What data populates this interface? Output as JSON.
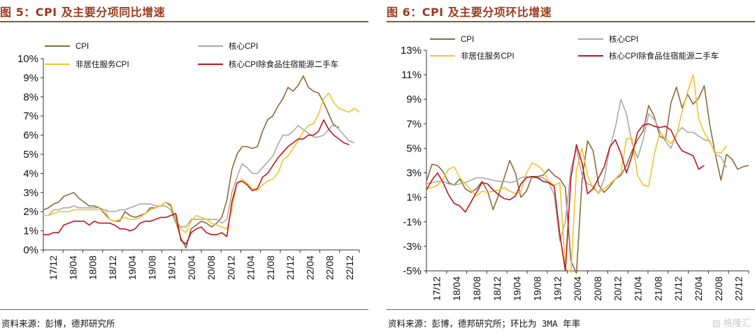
{
  "chart_data": [
    {
      "type": "line",
      "title": "图 5：CPI 及主要分项同比增速",
      "source": "资料来源：彭博，德邦研究所",
      "ylim": [
        0,
        10
      ],
      "yticks": [
        0,
        1,
        2,
        3,
        4,
        5,
        6,
        7,
        8,
        9,
        10
      ],
      "ytick_labels": [
        "0%",
        "1%",
        "2%",
        "3%",
        "4%",
        "5%",
        "6%",
        "7%",
        "8%",
        "9%",
        "10%"
      ],
      "xtick_labels": [
        "17/12",
        "18/04",
        "18/08",
        "18/12",
        "19/04",
        "19/08",
        "19/12",
        "20/04",
        "20/08",
        "20/12",
        "21/04",
        "21/08",
        "21/12",
        "22/04",
        "22/08",
        "22/12"
      ],
      "legend_placement": "top",
      "grid": false,
      "series": [
        {
          "name": "CPI",
          "color": "#8c6a3c",
          "values": [
            2.1,
            2.2,
            2.4,
            2.5,
            2.8,
            2.9,
            3.0,
            2.7,
            2.5,
            2.3,
            2.3,
            2.2,
            1.9,
            1.6,
            1.5,
            1.5,
            2.0,
            1.8,
            1.7,
            1.8,
            1.9,
            2.2,
            2.2,
            2.3,
            2.5,
            2.3,
            1.5,
            0.6,
            0.1,
            1.1,
            1.3,
            1.5,
            1.4,
            1.2,
            1.4,
            1.7,
            2.6,
            4.2,
            5.0,
            5.4,
            5.4,
            5.3,
            5.4,
            6.2,
            6.8,
            7.0,
            7.5,
            7.9,
            8.5,
            8.3,
            8.6,
            9.1,
            8.5,
            8.3,
            8.2,
            7.7,
            7.1,
            6.5,
            6.4
          ]
        },
        {
          "name": "核心CPI",
          "color": "#a9a9a9",
          "values": [
            1.8,
            1.8,
            2.1,
            2.1,
            2.2,
            2.2,
            2.3,
            2.2,
            2.2,
            2.2,
            2.2,
            2.2,
            2.1,
            2.0,
            2.0,
            2.1,
            2.1,
            2.2,
            2.3,
            2.4,
            2.4,
            2.4,
            2.3,
            2.3,
            2.3,
            2.1,
            1.4,
            1.2,
            1.2,
            1.6,
            1.6,
            1.6,
            1.6,
            1.6,
            1.6,
            1.4,
            1.6,
            3.0,
            3.8,
            4.5,
            4.3,
            4.0,
            4.0,
            4.3,
            4.6,
            4.9,
            5.5,
            6.0,
            6.0,
            6.2,
            6.5,
            6.3,
            6.1,
            5.9,
            5.9,
            6.0,
            6.3,
            6.6,
            6.3,
            6.0,
            5.7,
            5.6
          ]
        },
        {
          "name": "非居住服务CPI",
          "color": "#f5c22a",
          "values": [
            1.8,
            1.8,
            1.9,
            2.0,
            2.0,
            2.0,
            2.1,
            2.1,
            2.1,
            2.1,
            2.1,
            2.1,
            2.1,
            1.6,
            1.5,
            1.6,
            1.7,
            1.6,
            1.6,
            1.7,
            1.9,
            2.1,
            2.2,
            2.3,
            2.5,
            2.4,
            1.6,
            1.1,
            0.9,
            1.5,
            1.8,
            1.7,
            1.6,
            1.4,
            1.3,
            1.2,
            1.1,
            2.1,
            3.5,
            3.7,
            3.5,
            3.2,
            3.1,
            3.4,
            3.6,
            3.7,
            4.0,
            4.7,
            4.9,
            5.3,
            5.7,
            6.2,
            6.5,
            6.6,
            7.1,
            7.9,
            8.2,
            7.7,
            7.4,
            7.3,
            7.2,
            7.4,
            7.2
          ]
        },
        {
          "name": "核心CPI除食品住宿能源二手车",
          "color": "#c0141b",
          "values": [
            0.8,
            0.8,
            0.9,
            0.9,
            1.3,
            1.4,
            1.5,
            1.5,
            1.5,
            1.3,
            1.5,
            1.4,
            1.4,
            1.4,
            1.3,
            1.1,
            1.1,
            1.0,
            1.1,
            1.4,
            1.5,
            1.5,
            1.6,
            1.7,
            1.7,
            1.8,
            1.9,
            0.5,
            0.3,
            0.9,
            1.1,
            1.2,
            0.9,
            0.8,
            0.8,
            0.9,
            0.7,
            2.5,
            3.5,
            3.6,
            3.4,
            3.1,
            3.2,
            3.8,
            4.0,
            4.4,
            4.8,
            5.1,
            5.4,
            5.6,
            5.8,
            5.8,
            6.0,
            6.0,
            6.2,
            6.8,
            6.3,
            6.0,
            5.8,
            5.6,
            5.5
          ]
        }
      ]
    },
    {
      "type": "line",
      "title": "图 6：CPI 及主要分项环比增速",
      "source": "资料来源：彭博，德邦研究所；环比为 3MA 年率",
      "ylim": [
        -5,
        13
      ],
      "yticks": [
        -5,
        -3,
        -1,
        1,
        3,
        5,
        7,
        9,
        11,
        13
      ],
      "ytick_labels": [
        "-5%",
        "-3%",
        "-1%",
        "1%",
        "3%",
        "5%",
        "7%",
        "9%",
        "11%",
        "13%"
      ],
      "xtick_labels": [
        "17/12",
        "18/04",
        "18/08",
        "18/12",
        "19/04",
        "19/08",
        "19/12",
        "20/04",
        "20/08",
        "20/12",
        "21/04",
        "21/08",
        "21/12",
        "22/04",
        "22/08",
        "22/12"
      ],
      "legend_placement": "top",
      "grid": false,
      "series": [
        {
          "name": "CPI",
          "color": "#8c6a3c",
          "values": [
            2.3,
            3.7,
            3.6,
            3.1,
            2.2,
            2.0,
            2.5,
            1.7,
            1.4,
            1.7,
            2.3,
            1.5,
            0.0,
            1.2,
            2.6,
            4.0,
            3.0,
            1.0,
            1.5,
            2.7,
            2.7,
            2.8,
            3.3,
            2.8,
            2.5,
            1.8,
            -4.2,
            -5.2,
            2.4,
            5.6,
            4.8,
            2.0,
            1.4,
            1.9,
            2.5,
            2.8,
            3.6,
            4.8,
            5.7,
            6.4,
            8.5,
            7.6,
            6.0,
            5.7,
            8.7,
            10.0,
            8.3,
            9.4,
            8.6,
            9.1,
            10.1,
            6.9,
            4.5,
            2.4,
            4.5,
            4.1,
            3.3,
            3.5,
            3.6
          ]
        },
        {
          "name": "核心CPI",
          "color": "#a9a9a9",
          "values": [
            2.1,
            2.2,
            2.3,
            2.3,
            2.1,
            2.0,
            2.1,
            2.2,
            2.4,
            2.6,
            2.6,
            2.5,
            2.4,
            2.3,
            2.3,
            2.2,
            2.3,
            2.6,
            2.7,
            2.6,
            2.6,
            2.6,
            2.2,
            1.2,
            -2.6,
            -1.0,
            3.3,
            5.0,
            2.8,
            2.1,
            1.9,
            1.3,
            2.5,
            5.0,
            6.7,
            9.0,
            7.8,
            5.4,
            4.2,
            5.7,
            7.8,
            7.4,
            6.4,
            5.6,
            5.0,
            6.2,
            6.7,
            6.3,
            6.3,
            6.0,
            5.7,
            5.6,
            4.5,
            4.3,
            3.4
          ]
        },
        {
          "name": "非居住服务CPI",
          "color": "#f5c22a",
          "values": [
            1.7,
            1.8,
            2.0,
            2.5,
            3.3,
            3.5,
            2.6,
            2.1,
            1.6,
            1.1,
            1.5,
            1.4,
            1.5,
            1.6,
            1.8,
            1.5,
            1.3,
            1.5,
            3.0,
            3.8,
            3.6,
            3.2,
            2.3,
            2.0,
            2.2,
            -4.8,
            -5.1,
            3.2,
            5.0,
            2.8,
            1.7,
            1.4,
            1.7,
            2.1,
            2.5,
            3.0,
            5.8,
            5.8,
            2.8,
            2.0,
            1.9,
            4.5,
            6.3,
            5.8,
            5.4,
            6.0,
            8.0,
            9.6,
            11.0,
            7.4,
            6.3,
            5.5,
            4.7,
            4.6,
            5.2
          ]
        },
        {
          "name": "核心CPI除食品住宿能源二手车",
          "color": "#c0141b",
          "values": [
            1.6,
            2.4,
            3.0,
            2.2,
            1.2,
            0.5,
            0.3,
            -0.2,
            0.6,
            1.4,
            2.2,
            2.1,
            1.6,
            1.2,
            0.9,
            0.8,
            1.1,
            2.1,
            2.6,
            2.7,
            2.6,
            2.3,
            2.2,
            1.9,
            -2.0,
            -5.0,
            2.6,
            5.3,
            3.8,
            1.3,
            1.7,
            2.6,
            3.5,
            5.1,
            5.7,
            4.6,
            3.0,
            4.4,
            6.3,
            6.9,
            7.0,
            6.8,
            6.7,
            6.8,
            6.5,
            5.5,
            4.8,
            4.6,
            4.4,
            3.3,
            3.6
          ]
        }
      ]
    }
  ],
  "watermark": "格隆汇"
}
